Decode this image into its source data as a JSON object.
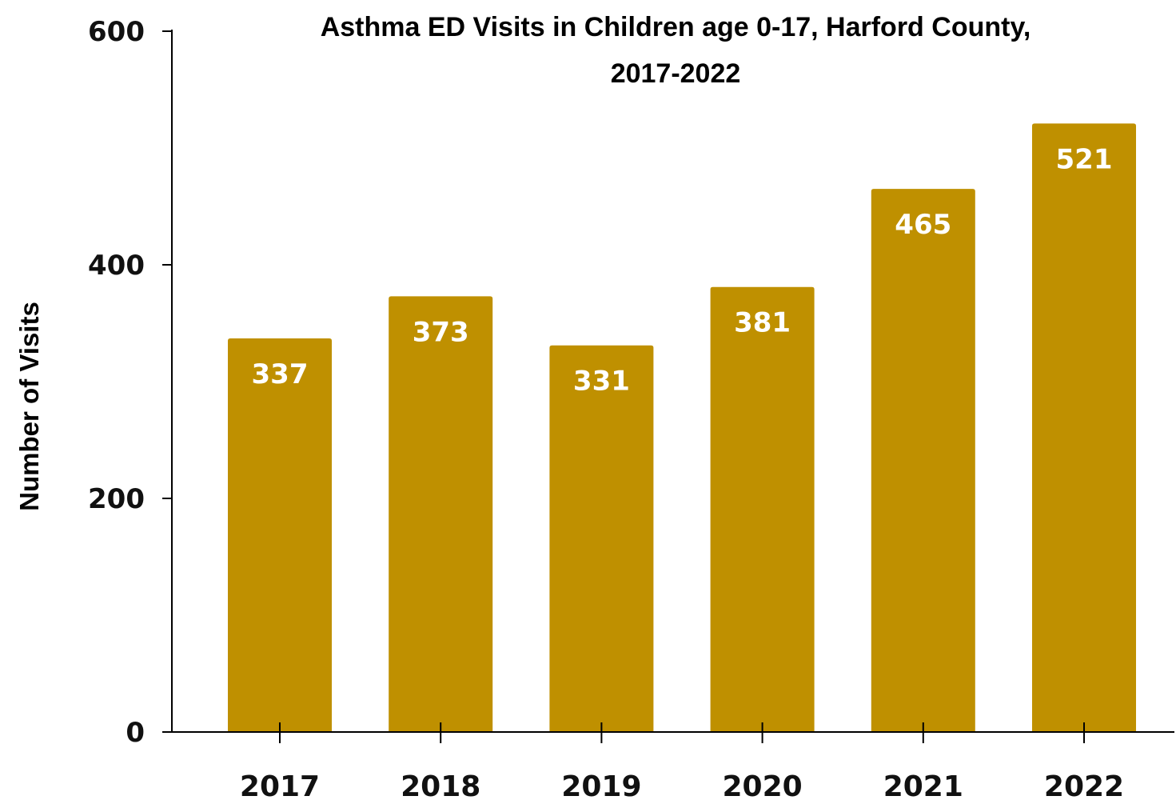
{
  "chart_data": {
    "type": "bar",
    "title_line1": "Asthma ED Visits in Children age 0-17, Harford County,",
    "title_line2": "2017-2022",
    "xlabel": "",
    "ylabel": "Number of Visits",
    "categories": [
      "2017",
      "2018",
      "2019",
      "2020",
      "2021",
      "2022"
    ],
    "values": [
      337,
      373,
      331,
      381,
      465,
      521
    ],
    "value_labels": [
      "337",
      "373",
      "331",
      "381",
      "465",
      "521"
    ],
    "ylim": [
      0,
      600
    ],
    "yticks": [
      0,
      200,
      400,
      600
    ],
    "ytick_labels": [
      "0",
      "200",
      "400",
      "600"
    ],
    "grid": false,
    "legend": "none",
    "bar_color": "#BF9000",
    "value_label_color": "#FFFFFF"
  }
}
